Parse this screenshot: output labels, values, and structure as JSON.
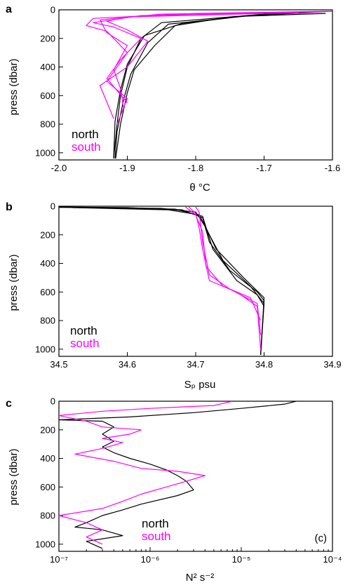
{
  "colors": {
    "north": "#000000",
    "south": "#ff00ff"
  },
  "chart_data": [
    {
      "type": "line",
      "panel_label": "a",
      "xlabel": "θ °C",
      "ylabel": "press (dbar)",
      "xlim": [
        -2.0,
        -1.6
      ],
      "ylim": [
        1050,
        0
      ],
      "xticks": [
        "-2.0",
        "-1.9",
        "-1.8",
        "-1.7",
        "-1.6"
      ],
      "yticks": [
        "0",
        "200",
        "400",
        "600",
        "800",
        "1000"
      ],
      "legend": [
        "north",
        "south"
      ],
      "series": [
        {
          "name": "north",
          "color": "#000000",
          "x": [
            -1.6,
            -1.7,
            -1.85,
            -1.88,
            -1.9,
            -1.91,
            -1.915,
            -1.92
          ],
          "y": [
            10,
            30,
            90,
            200,
            400,
            600,
            800,
            1040
          ]
        },
        {
          "name": "north",
          "color": "#000000",
          "x": [
            -1.62,
            -1.72,
            -1.84,
            -1.87,
            -1.895,
            -1.905,
            -1.915,
            -1.918
          ],
          "y": [
            15,
            40,
            100,
            230,
            450,
            620,
            850,
            1040
          ]
        },
        {
          "name": "north",
          "color": "#000000",
          "x": [
            -1.65,
            -1.75,
            -1.83,
            -1.86,
            -1.89,
            -1.9,
            -1.91,
            -1.917
          ],
          "y": [
            20,
            50,
            110,
            250,
            420,
            580,
            800,
            1040
          ]
        },
        {
          "name": "north",
          "color": "#000000",
          "x": [
            -1.61,
            -1.73,
            -1.82,
            -1.875,
            -1.9,
            -1.91,
            -1.918,
            -1.92
          ],
          "y": [
            25,
            45,
            95,
            180,
            380,
            560,
            780,
            1040
          ]
        },
        {
          "name": "south",
          "color": "#ff00ff",
          "x": [
            -1.6,
            -1.8,
            -1.95,
            -1.96,
            -1.93,
            -1.9,
            -1.93,
            -1.9,
            -1.915
          ],
          "y": [
            10,
            25,
            60,
            110,
            150,
            300,
            500,
            620,
            800
          ]
        },
        {
          "name": "south",
          "color": "#ff00ff",
          "x": [
            -1.62,
            -1.85,
            -1.94,
            -1.93,
            -1.9,
            -1.92,
            -1.91,
            -1.905
          ],
          "y": [
            15,
            30,
            70,
            160,
            250,
            420,
            550,
            700
          ]
        },
        {
          "name": "south",
          "color": "#ff00ff",
          "x": [
            -1.65,
            -1.88,
            -1.95,
            -1.92,
            -1.88,
            -1.91,
            -1.93,
            -1.9
          ],
          "y": [
            20,
            40,
            90,
            120,
            200,
            350,
            480,
            650
          ]
        },
        {
          "name": "south",
          "color": "#ff00ff",
          "x": [
            -1.7,
            -1.9,
            -1.93,
            -1.9,
            -1.87,
            -1.9,
            -1.94,
            -1.92
          ],
          "y": [
            25,
            50,
            80,
            140,
            220,
            400,
            530,
            760
          ]
        }
      ]
    },
    {
      "type": "line",
      "panel_label": "b",
      "xlabel": "Sₚ psu",
      "ylabel": "press (dbar)",
      "xlim": [
        34.5,
        34.9
      ],
      "ylim": [
        1050,
        0
      ],
      "xticks": [
        "34.5",
        "34.6",
        "34.7",
        "34.8",
        "34.9"
      ],
      "yticks": [
        "0",
        "200",
        "400",
        "600",
        "800",
        "1000"
      ],
      "legend": [
        "north",
        "south"
      ],
      "series": [
        {
          "name": "north",
          "color": "#000000",
          "x": [
            34.5,
            34.6,
            34.68,
            34.71,
            34.72,
            34.75,
            34.79,
            34.8,
            34.795
          ],
          "y": [
            5,
            10,
            25,
            80,
            250,
            450,
            600,
            660,
            1040
          ]
        },
        {
          "name": "north",
          "color": "#000000",
          "x": [
            34.5,
            34.65,
            34.7,
            34.715,
            34.73,
            34.77,
            34.8,
            34.795
          ],
          "y": [
            8,
            15,
            40,
            150,
            300,
            500,
            640,
            1040
          ]
        },
        {
          "name": "north",
          "color": "#000000",
          "x": [
            34.52,
            34.66,
            34.705,
            34.72,
            34.74,
            34.78,
            34.8,
            34.795
          ],
          "y": [
            10,
            25,
            60,
            200,
            380,
            560,
            680,
            1040
          ]
        },
        {
          "name": "north",
          "color": "#000000",
          "x": [
            34.5,
            34.67,
            34.71,
            34.725,
            34.76,
            34.79,
            34.8
          ],
          "y": [
            6,
            20,
            70,
            300,
            520,
            620,
            700
          ]
        },
        {
          "name": "south",
          "color": "#ff00ff",
          "x": [
            34.69,
            34.7,
            34.705,
            34.71,
            34.72,
            34.76,
            34.79,
            34.795
          ],
          "y": [
            5,
            50,
            150,
            300,
            520,
            600,
            700,
            1000
          ]
        },
        {
          "name": "south",
          "color": "#ff00ff",
          "x": [
            34.685,
            34.7,
            34.71,
            34.715,
            34.74,
            34.78,
            34.795
          ],
          "y": [
            5,
            60,
            180,
            420,
            560,
            640,
            800
          ]
        },
        {
          "name": "south",
          "color": "#ff00ff",
          "x": [
            34.7,
            34.705,
            34.71,
            34.72,
            34.75,
            34.79,
            34.795
          ],
          "y": [
            5,
            40,
            250,
            480,
            580,
            680,
            900
          ]
        }
      ]
    },
    {
      "type": "line",
      "panel_label": "c",
      "xlabel": "N² s⁻²",
      "ylabel": "press (dbar)",
      "xscale": "log",
      "xlim": [
        1e-07,
        0.0001
      ],
      "ylim": [
        1050,
        0
      ],
      "xticks": [
        "10⁻⁷",
        "10⁻⁶",
        "10⁻⁵",
        "10⁻⁴"
      ],
      "yticks": [
        "0",
        "200",
        "400",
        "600",
        "800",
        "1000"
      ],
      "legend": [
        "north",
        "south"
      ],
      "annotation": "(c)",
      "series": [
        {
          "name": "north",
          "color": "#000000",
          "x": [
            4e-05,
            3e-05,
            1e-05,
            3e-06,
            6e-07,
            1e-07,
            3e-07,
            4e-07,
            3e-07,
            4e-07,
            3e-07,
            4e-07,
            6e-07,
            1e-06,
            1.5e-06,
            2e-06,
            2.5e-06,
            3e-06,
            2e-06,
            8e-07,
            5e-07,
            3e-07,
            2e-07,
            1.5e-07,
            3e-07,
            5e-07,
            2e-07,
            3e-07
          ],
          "y": [
            0,
            20,
            50,
            80,
            110,
            130,
            140,
            180,
            230,
            280,
            320,
            360,
            400,
            440,
            480,
            520,
            560,
            620,
            660,
            720,
            760,
            800,
            850,
            880,
            900,
            940,
            980,
            1030
          ]
        },
        {
          "name": "south",
          "color": "#ff00ff",
          "x": [
            8e-06,
            5e-06,
            1e-06,
            3e-07,
            1e-07,
            2e-07,
            3e-07,
            8e-07,
            6e-07,
            3e-07,
            5e-07,
            3e-07,
            1.5e-07,
            4e-07,
            8e-07,
            2e-06,
            4e-06,
            2.5e-06,
            1.5e-06,
            8e-07,
            5e-07,
            3e-07,
            1e-07,
            2e-07,
            3e-07,
            2e-07,
            3e-07
          ],
          "y": [
            0,
            30,
            50,
            70,
            100,
            140,
            180,
            200,
            230,
            260,
            290,
            330,
            370,
            420,
            470,
            490,
            520,
            560,
            600,
            650,
            700,
            750,
            800,
            850,
            900,
            950,
            1000
          ]
        }
      ]
    }
  ]
}
